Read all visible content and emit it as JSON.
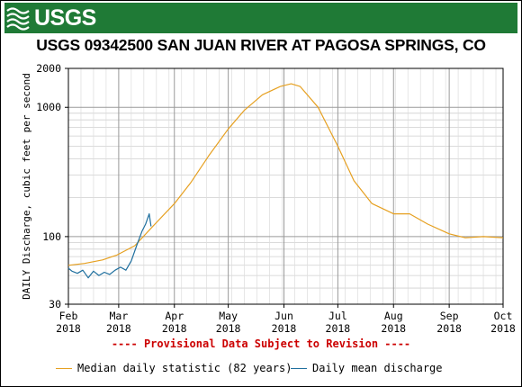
{
  "banner": {
    "agency": "USGS",
    "color": "#1f7a36"
  },
  "chart_data": {
    "type": "line",
    "title": "USGS 09342500 SAN JUAN RIVER AT PAGOSA SPRINGS, CO",
    "ylabel": "DAILY Discharge, cubic feet per second",
    "yscale": "log",
    "ylim": [
      30,
      2000
    ],
    "y_ticks": [
      "2000",
      "1000",
      "100",
      "30"
    ],
    "xlim": [
      "2018-02-01",
      "2018-10-01"
    ],
    "x_ticks": [
      {
        "month": "Feb",
        "year": "2018",
        "date": "2018-02-01"
      },
      {
        "month": "Mar",
        "year": "2018",
        "date": "2018-03-01"
      },
      {
        "month": "Apr",
        "year": "2018",
        "date": "2018-04-01"
      },
      {
        "month": "May",
        "year": "2018",
        "date": "2018-05-01"
      },
      {
        "month": "Jun",
        "year": "2018",
        "date": "2018-06-01"
      },
      {
        "month": "Jul",
        "year": "2018",
        "date": "2018-07-01"
      },
      {
        "month": "Aug",
        "year": "2018",
        "date": "2018-08-01"
      },
      {
        "month": "Sep",
        "year": "2018",
        "date": "2018-09-01"
      },
      {
        "month": "Oct",
        "year": "2018",
        "date": "2018-10-01"
      }
    ],
    "grid": true,
    "legend_placement": "bottom",
    "annotation": "---- Provisional Data Subject to Revision ----",
    "series": [
      {
        "name": "Median daily statistic (82 years)",
        "color": "#e6a020",
        "x": [
          "2018-02-01",
          "2018-02-10",
          "2018-02-20",
          "2018-02-28",
          "2018-03-10",
          "2018-03-20",
          "2018-04-01",
          "2018-04-10",
          "2018-04-20",
          "2018-05-01",
          "2018-05-10",
          "2018-05-20",
          "2018-05-30",
          "2018-06-05",
          "2018-06-10",
          "2018-06-20",
          "2018-07-01",
          "2018-07-10",
          "2018-07-20",
          "2018-08-01",
          "2018-08-10",
          "2018-08-20",
          "2018-09-01",
          "2018-09-10",
          "2018-09-20",
          "2018-10-01"
        ],
        "y": [
          60,
          62,
          66,
          72,
          85,
          120,
          180,
          260,
          420,
          680,
          950,
          1250,
          1450,
          1520,
          1450,
          1000,
          500,
          270,
          180,
          150,
          150,
          125,
          105,
          98,
          100,
          98
        ]
      },
      {
        "name": "Daily mean discharge",
        "color": "#1f6f9e",
        "x": [
          "2018-02-01",
          "2018-02-03",
          "2018-02-06",
          "2018-02-09",
          "2018-02-12",
          "2018-02-15",
          "2018-02-18",
          "2018-02-21",
          "2018-02-24",
          "2018-02-27",
          "2018-03-02",
          "2018-03-05",
          "2018-03-08",
          "2018-03-11",
          "2018-03-14",
          "2018-03-16",
          "2018-03-18",
          "2018-03-19"
        ],
        "y": [
          57,
          54,
          52,
          55,
          48,
          54,
          50,
          53,
          51,
          55,
          58,
          55,
          65,
          85,
          110,
          125,
          150,
          120
        ]
      }
    ]
  },
  "legend": [
    {
      "label": "Median daily statistic (82 years)",
      "color": "#e6a020"
    },
    {
      "label": "Daily mean discharge",
      "color": "#1f6f9e"
    }
  ]
}
